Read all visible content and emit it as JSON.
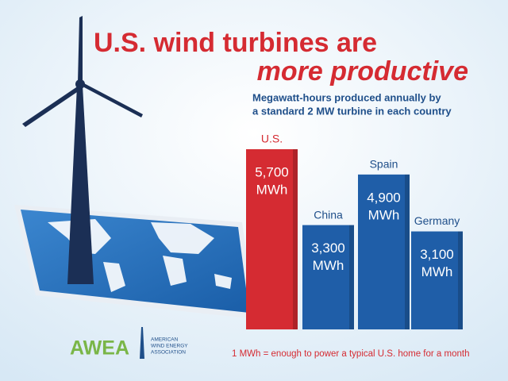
{
  "chart_data": {
    "type": "bar",
    "title": [
      "U.S. wind turbines are",
      "more productive"
    ],
    "subtitle": [
      "Megawatt-hours produced annually by",
      "a standard 2 MW turbine in each country"
    ],
    "categories": [
      "U.S.",
      "China",
      "Spain",
      "Germany"
    ],
    "values": [
      5700,
      3300,
      4900,
      3100
    ],
    "value_labels": [
      "5,700",
      "3,300",
      "4,900",
      "3,100"
    ],
    "unit": "MWh",
    "colors": [
      "#d52b32",
      "#1f5ea8",
      "#1f5ea8",
      "#1f5ea8"
    ],
    "category_colors": [
      "#d52b32",
      "#1f4f8a",
      "#1f4f8a",
      "#1f4f8a"
    ],
    "footnote": "1 MWh = enough to power a typical U.S. home for a month",
    "logo": {
      "name": "AWEA",
      "full_name": [
        "AMERICAN",
        "WIND ENERGY",
        "ASSOCIATION"
      ]
    }
  }
}
